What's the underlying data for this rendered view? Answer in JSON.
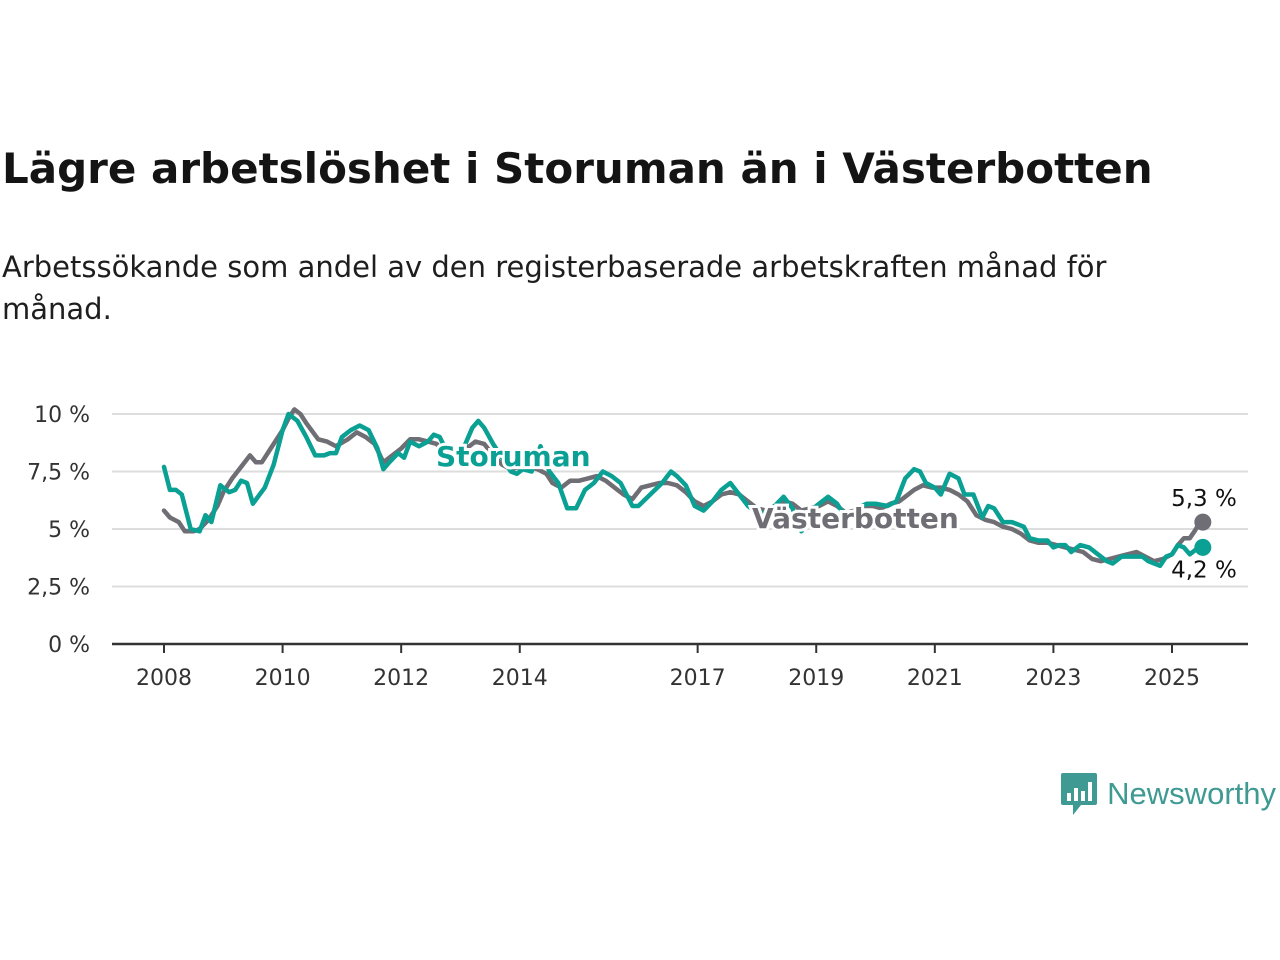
{
  "title": "Lägre arbetslöshet i Storuman än i Västerbotten",
  "subtitle": "Arbetssökande som andel av den registerbaserade arbetskraften månad för månad.",
  "brand": {
    "name": "Newsworthy",
    "color": "#3e9a92",
    "icon": "newsworthy-chart-bubble-icon"
  },
  "colors": {
    "storuman": "#0aa093",
    "vasterbotten": "#6e6e74",
    "grid": "#dddddd",
    "axis": "#333333"
  },
  "chart_data": {
    "type": "line",
    "title": "Lägre arbetslöshet i Storuman än i Västerbotten",
    "subtitle": "Arbetssökande som andel av den registerbaserade arbetskraften månad för månad.",
    "xlabel": "",
    "ylabel": "",
    "x_range": [
      2007.2,
      2026.4
    ],
    "ylim": [
      0,
      10
    ],
    "yticks": [
      0,
      2.5,
      5,
      7.5,
      10
    ],
    "ytick_labels": [
      "0 %",
      "2,5 %",
      "5 %",
      "7,5 %",
      "10 %"
    ],
    "xticks": [
      2008,
      2010,
      2012,
      2014,
      2017,
      2019,
      2021,
      2023,
      2025
    ],
    "xtick_labels": [
      "2008",
      "2010",
      "2012",
      "2014",
      "2017",
      "2019",
      "2021",
      "2023",
      "2025"
    ],
    "grid": true,
    "legend": "direct labels",
    "series": [
      {
        "name": "Storuman",
        "color": "#0aa093",
        "end_label": "4,2 %",
        "points": [
          [
            2008.0,
            7.7
          ],
          [
            2008.1,
            6.7
          ],
          [
            2008.2,
            6.7
          ],
          [
            2008.3,
            6.5
          ],
          [
            2008.45,
            5.0
          ],
          [
            2008.6,
            4.9
          ],
          [
            2008.7,
            5.6
          ],
          [
            2008.8,
            5.3
          ],
          [
            2008.95,
            6.9
          ],
          [
            2009.1,
            6.6
          ],
          [
            2009.2,
            6.7
          ],
          [
            2009.3,
            7.1
          ],
          [
            2009.4,
            7.0
          ],
          [
            2009.5,
            6.1
          ],
          [
            2009.7,
            6.8
          ],
          [
            2009.85,
            7.8
          ],
          [
            2010.0,
            9.3
          ],
          [
            2010.1,
            10.0
          ],
          [
            2010.25,
            9.7
          ],
          [
            2010.4,
            9.0
          ],
          [
            2010.55,
            8.2
          ],
          [
            2010.7,
            8.2
          ],
          [
            2010.8,
            8.3
          ],
          [
            2010.9,
            8.3
          ],
          [
            2011.0,
            9.0
          ],
          [
            2011.15,
            9.3
          ],
          [
            2011.3,
            9.5
          ],
          [
            2011.45,
            9.3
          ],
          [
            2011.6,
            8.5
          ],
          [
            2011.7,
            7.6
          ],
          [
            2011.8,
            7.9
          ],
          [
            2011.95,
            8.3
          ],
          [
            2012.05,
            8.1
          ],
          [
            2012.15,
            8.8
          ],
          [
            2012.3,
            8.6
          ],
          [
            2012.45,
            8.8
          ],
          [
            2012.55,
            9.1
          ],
          [
            2012.65,
            9.0
          ],
          [
            2012.8,
            8.2
          ],
          [
            2012.95,
            8.3
          ],
          [
            2013.05,
            8.5
          ],
          [
            2013.2,
            9.4
          ],
          [
            2013.3,
            9.7
          ],
          [
            2013.4,
            9.4
          ],
          [
            2013.55,
            8.7
          ],
          [
            2013.7,
            8.1
          ],
          [
            2013.85,
            7.5
          ],
          [
            2013.95,
            7.4
          ],
          [
            2014.05,
            7.6
          ],
          [
            2014.2,
            7.5
          ],
          [
            2014.35,
            8.6
          ],
          [
            2014.5,
            7.5
          ],
          [
            2014.65,
            7.0
          ],
          [
            2014.8,
            5.9
          ],
          [
            2014.95,
            5.9
          ],
          [
            2015.1,
            6.7
          ],
          [
            2015.25,
            7.0
          ],
          [
            2015.4,
            7.5
          ],
          [
            2015.55,
            7.3
          ],
          [
            2015.7,
            7.0
          ],
          [
            2015.8,
            6.5
          ],
          [
            2015.9,
            6.0
          ],
          [
            2016.0,
            6.0
          ],
          [
            2016.2,
            6.5
          ],
          [
            2016.4,
            7.0
          ],
          [
            2016.55,
            7.5
          ],
          [
            2016.65,
            7.3
          ],
          [
            2016.8,
            6.9
          ],
          [
            2016.95,
            6.0
          ],
          [
            2017.1,
            5.8
          ],
          [
            2017.25,
            6.2
          ],
          [
            2017.4,
            6.7
          ],
          [
            2017.55,
            7.0
          ],
          [
            2017.7,
            6.5
          ],
          [
            2017.85,
            6.0
          ],
          [
            2018.0,
            5.7
          ],
          [
            2018.15,
            5.7
          ],
          [
            2018.3,
            6.0
          ],
          [
            2018.45,
            6.4
          ],
          [
            2018.6,
            5.9
          ],
          [
            2018.75,
            4.9
          ],
          [
            2018.9,
            5.5
          ],
          [
            2019.0,
            6.0
          ],
          [
            2019.2,
            6.4
          ],
          [
            2019.35,
            6.1
          ],
          [
            2019.5,
            5.5
          ],
          [
            2019.7,
            5.9
          ],
          [
            2019.85,
            6.1
          ],
          [
            2020.0,
            6.1
          ],
          [
            2020.2,
            6.0
          ],
          [
            2020.35,
            6.2
          ],
          [
            2020.5,
            7.2
          ],
          [
            2020.65,
            7.6
          ],
          [
            2020.75,
            7.5
          ],
          [
            2020.85,
            7.0
          ],
          [
            2021.0,
            6.8
          ],
          [
            2021.1,
            6.5
          ],
          [
            2021.25,
            7.4
          ],
          [
            2021.4,
            7.2
          ],
          [
            2021.5,
            6.5
          ],
          [
            2021.65,
            6.5
          ],
          [
            2021.8,
            5.5
          ],
          [
            2021.9,
            6.0
          ],
          [
            2022.0,
            5.9
          ],
          [
            2022.15,
            5.3
          ],
          [
            2022.3,
            5.3
          ],
          [
            2022.5,
            5.1
          ],
          [
            2022.6,
            4.6
          ],
          [
            2022.75,
            4.5
          ],
          [
            2022.9,
            4.5
          ],
          [
            2023.0,
            4.2
          ],
          [
            2023.1,
            4.3
          ],
          [
            2023.2,
            4.3
          ],
          [
            2023.3,
            4.0
          ],
          [
            2023.45,
            4.3
          ],
          [
            2023.6,
            4.2
          ],
          [
            2023.75,
            3.9
          ],
          [
            2023.9,
            3.6
          ],
          [
            2024.0,
            3.5
          ],
          [
            2024.15,
            3.8
          ],
          [
            2024.3,
            3.8
          ],
          [
            2024.5,
            3.8
          ],
          [
            2024.6,
            3.6
          ],
          [
            2024.7,
            3.5
          ],
          [
            2024.8,
            3.4
          ],
          [
            2024.9,
            3.8
          ],
          [
            2025.0,
            3.9
          ],
          [
            2025.1,
            4.3
          ],
          [
            2025.2,
            4.2
          ],
          [
            2025.3,
            3.9
          ],
          [
            2025.4,
            4.1
          ],
          [
            2025.52,
            4.2
          ]
        ]
      },
      {
        "name": "Västerbotten",
        "color": "#6e6e74",
        "end_label": "5,3 %",
        "points": [
          [
            2008.0,
            5.8
          ],
          [
            2008.1,
            5.5
          ],
          [
            2008.25,
            5.3
          ],
          [
            2008.35,
            4.9
          ],
          [
            2008.5,
            4.9
          ],
          [
            2008.6,
            5.0
          ],
          [
            2008.75,
            5.4
          ],
          [
            2008.9,
            6.0
          ],
          [
            2009.0,
            6.6
          ],
          [
            2009.15,
            7.2
          ],
          [
            2009.3,
            7.7
          ],
          [
            2009.45,
            8.2
          ],
          [
            2009.55,
            7.9
          ],
          [
            2009.65,
            7.9
          ],
          [
            2009.8,
            8.5
          ],
          [
            2010.0,
            9.3
          ],
          [
            2010.1,
            9.8
          ],
          [
            2010.2,
            10.2
          ],
          [
            2010.3,
            10.0
          ],
          [
            2010.4,
            9.6
          ],
          [
            2010.6,
            8.9
          ],
          [
            2010.75,
            8.8
          ],
          [
            2010.9,
            8.6
          ],
          [
            2011.1,
            8.9
          ],
          [
            2011.25,
            9.2
          ],
          [
            2011.4,
            9.0
          ],
          [
            2011.55,
            8.7
          ],
          [
            2011.7,
            7.9
          ],
          [
            2011.85,
            8.2
          ],
          [
            2012.0,
            8.5
          ],
          [
            2012.15,
            8.9
          ],
          [
            2012.3,
            8.9
          ],
          [
            2012.45,
            8.8
          ],
          [
            2012.6,
            8.7
          ],
          [
            2012.75,
            8.1
          ],
          [
            2012.85,
            7.8
          ],
          [
            2012.95,
            8.0
          ],
          [
            2013.1,
            8.5
          ],
          [
            2013.25,
            8.8
          ],
          [
            2013.4,
            8.7
          ],
          [
            2013.55,
            8.2
          ],
          [
            2013.7,
            7.8
          ],
          [
            2013.85,
            7.6
          ],
          [
            2014.0,
            7.7
          ],
          [
            2014.15,
            7.7
          ],
          [
            2014.3,
            7.6
          ],
          [
            2014.45,
            7.4
          ],
          [
            2014.55,
            7.0
          ],
          [
            2014.7,
            6.8
          ],
          [
            2014.85,
            7.1
          ],
          [
            2015.0,
            7.1
          ],
          [
            2015.15,
            7.2
          ],
          [
            2015.3,
            7.3
          ],
          [
            2015.45,
            7.1
          ],
          [
            2015.6,
            6.8
          ],
          [
            2015.75,
            6.5
          ],
          [
            2015.9,
            6.3
          ],
          [
            2016.05,
            6.8
          ],
          [
            2016.2,
            6.9
          ],
          [
            2016.35,
            7.0
          ],
          [
            2016.5,
            7.0
          ],
          [
            2016.65,
            6.9
          ],
          [
            2016.8,
            6.6
          ],
          [
            2016.95,
            6.2
          ],
          [
            2017.1,
            6.0
          ],
          [
            2017.25,
            6.2
          ],
          [
            2017.4,
            6.5
          ],
          [
            2017.55,
            6.6
          ],
          [
            2017.7,
            6.5
          ],
          [
            2017.85,
            6.2
          ],
          [
            2018.0,
            5.9
          ],
          [
            2018.15,
            5.8
          ],
          [
            2018.3,
            6.0
          ],
          [
            2018.45,
            6.2
          ],
          [
            2018.6,
            6.1
          ],
          [
            2018.75,
            5.8
          ],
          [
            2018.9,
            5.9
          ],
          [
            2019.05,
            6.0
          ],
          [
            2019.2,
            6.2
          ],
          [
            2019.35,
            6.0
          ],
          [
            2019.5,
            5.7
          ],
          [
            2019.65,
            5.8
          ],
          [
            2019.8,
            6.0
          ],
          [
            2019.95,
            6.0
          ],
          [
            2020.1,
            5.9
          ],
          [
            2020.25,
            6.1
          ],
          [
            2020.4,
            6.2
          ],
          [
            2020.5,
            6.4
          ],
          [
            2020.65,
            6.7
          ],
          [
            2020.8,
            6.9
          ],
          [
            2020.95,
            6.8
          ],
          [
            2021.1,
            6.8
          ],
          [
            2021.25,
            6.7
          ],
          [
            2021.4,
            6.5
          ],
          [
            2021.55,
            6.2
          ],
          [
            2021.7,
            5.6
          ],
          [
            2021.85,
            5.4
          ],
          [
            2022.0,
            5.3
          ],
          [
            2022.15,
            5.1
          ],
          [
            2022.3,
            5.0
          ],
          [
            2022.45,
            4.8
          ],
          [
            2022.6,
            4.5
          ],
          [
            2022.75,
            4.4
          ],
          [
            2022.9,
            4.4
          ],
          [
            2023.05,
            4.3
          ],
          [
            2023.2,
            4.2
          ],
          [
            2023.35,
            4.1
          ],
          [
            2023.5,
            4.0
          ],
          [
            2023.65,
            3.7
          ],
          [
            2023.8,
            3.6
          ],
          [
            2023.95,
            3.7
          ],
          [
            2024.1,
            3.8
          ],
          [
            2024.25,
            3.9
          ],
          [
            2024.4,
            4.0
          ],
          [
            2024.55,
            3.8
          ],
          [
            2024.7,
            3.6
          ],
          [
            2024.85,
            3.7
          ],
          [
            2025.0,
            3.9
          ],
          [
            2025.1,
            4.3
          ],
          [
            2025.2,
            4.6
          ],
          [
            2025.3,
            4.6
          ],
          [
            2025.38,
            4.9
          ],
          [
            2025.45,
            5.2
          ],
          [
            2025.52,
            5.3
          ]
        ]
      }
    ]
  }
}
